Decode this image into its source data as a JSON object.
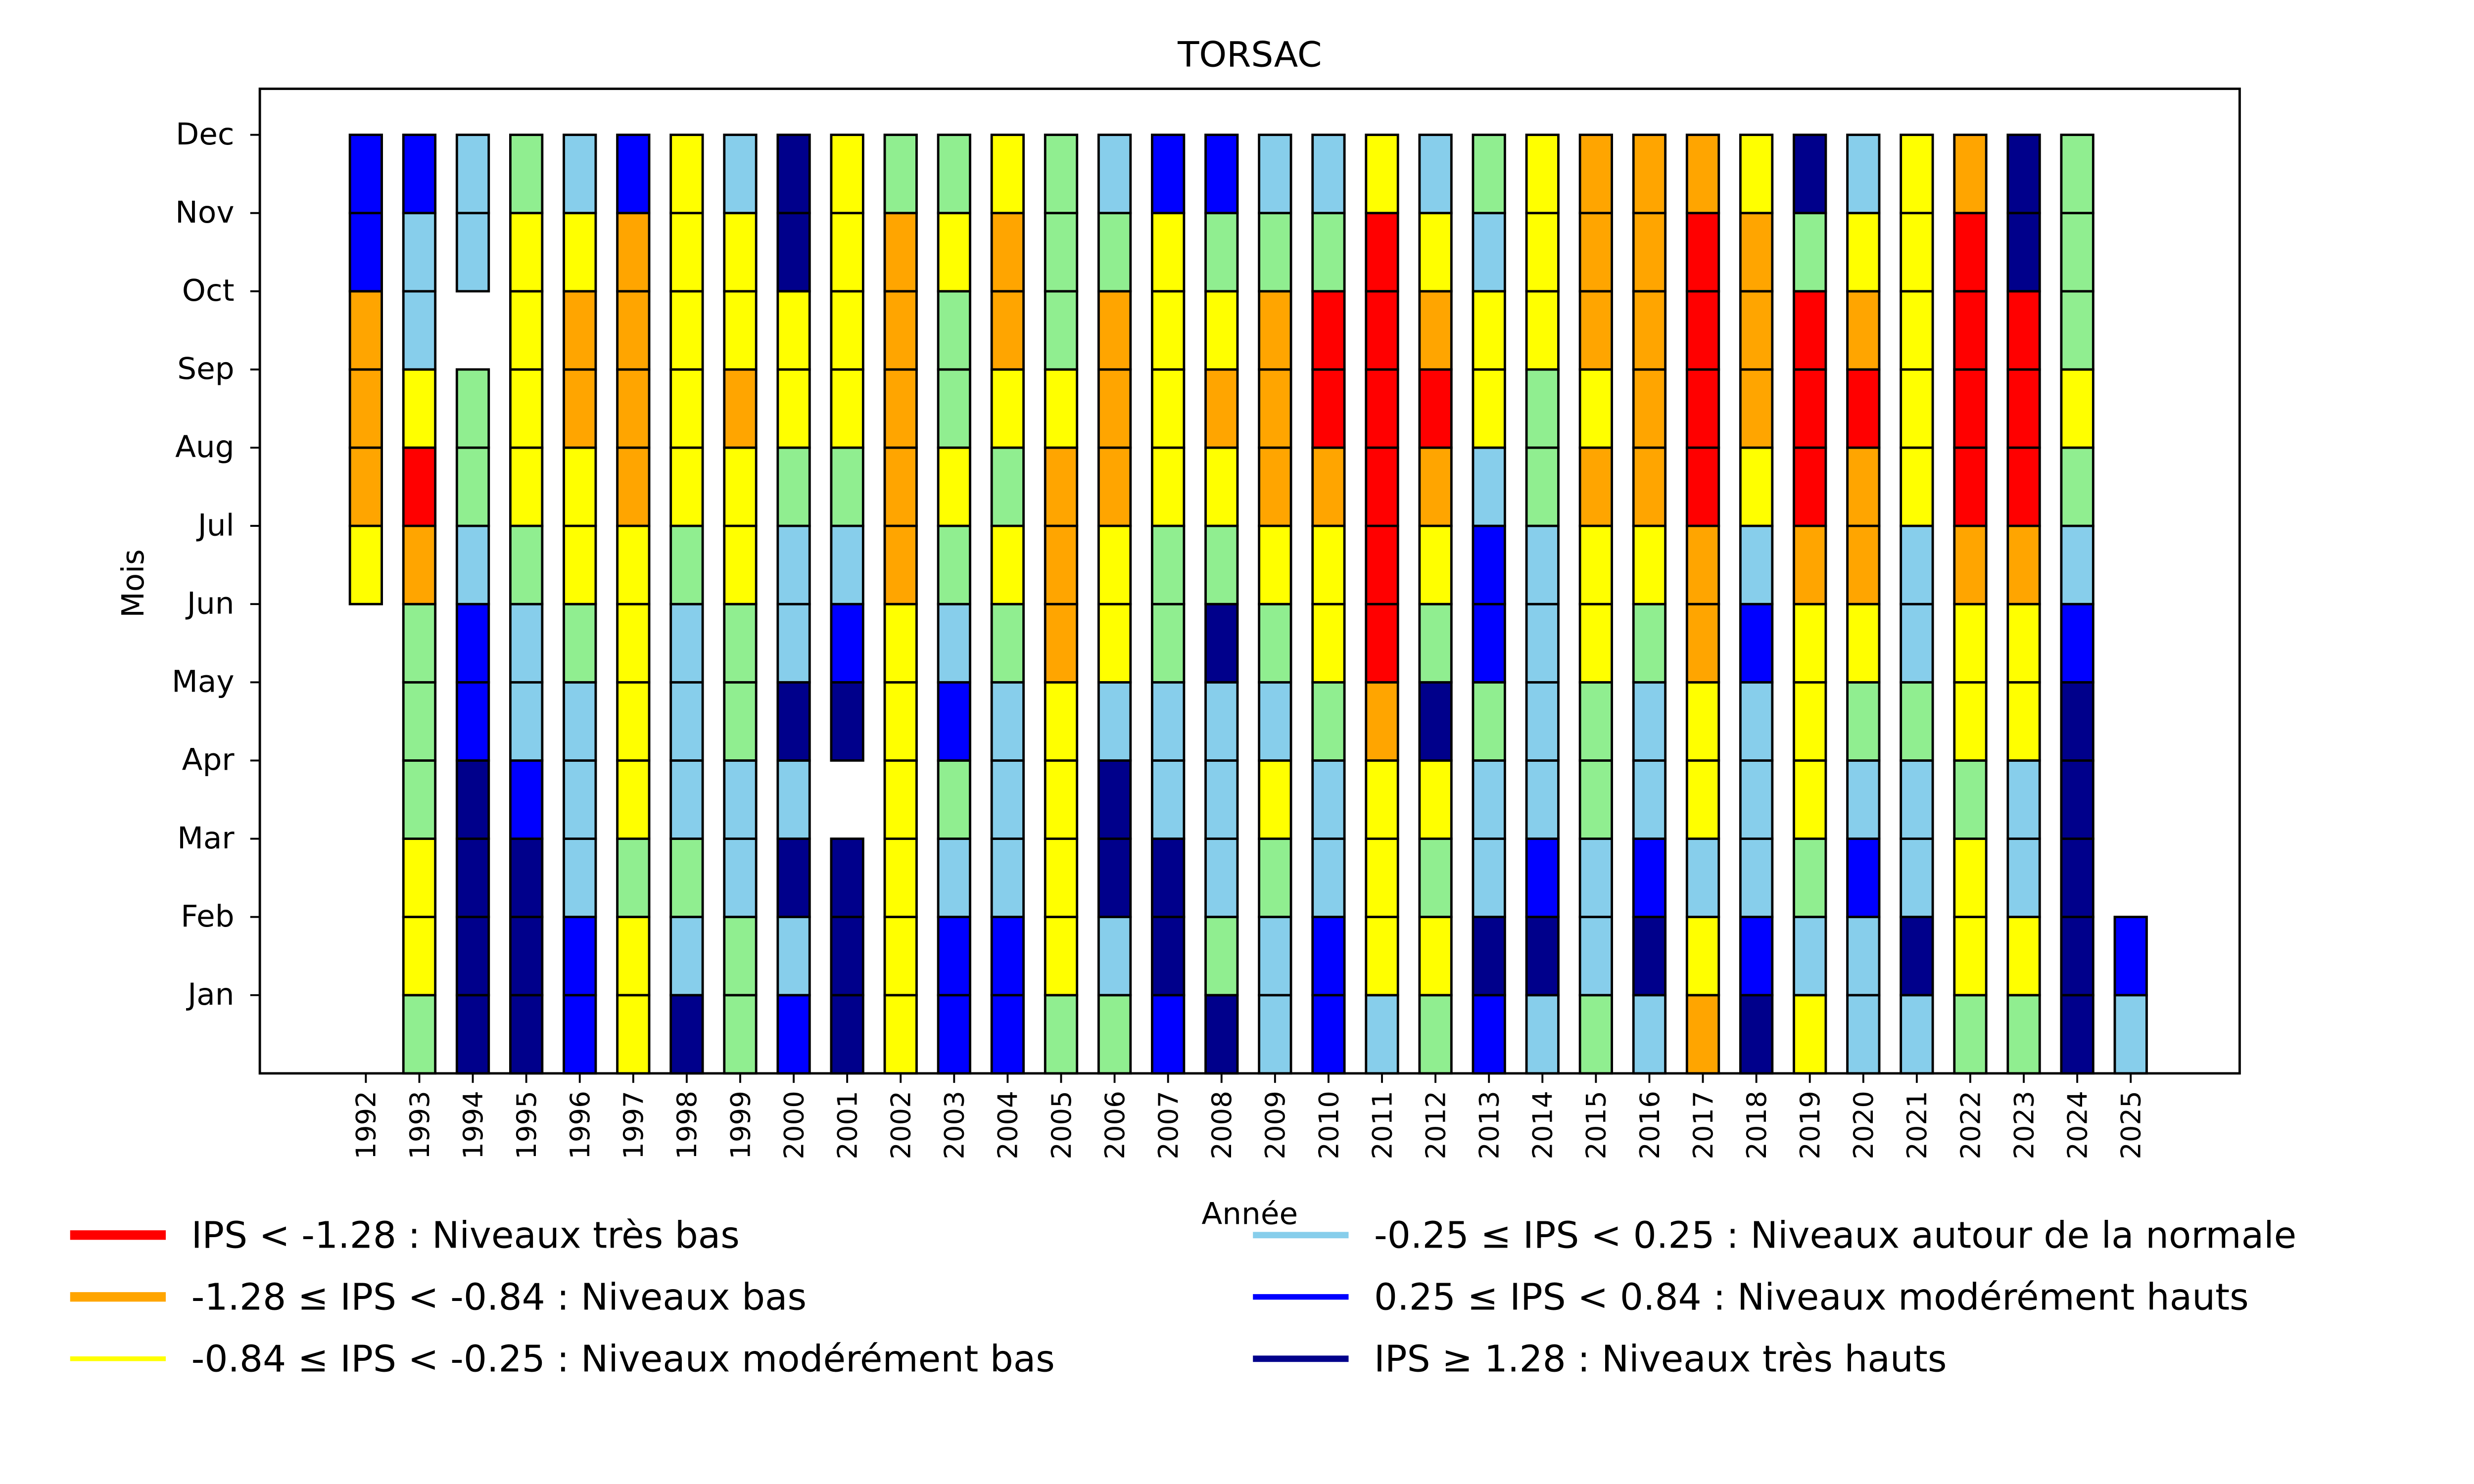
{
  "chart_data": {
    "type": "heatmap",
    "title": "TORSAC",
    "xlabel": "Année",
    "ylabel": "Mois",
    "months": [
      "Jan",
      "Feb",
      "Mar",
      "Apr",
      "May",
      "Jun",
      "Jul",
      "Aug",
      "Sep",
      "Oct",
      "Nov",
      "Dec"
    ],
    "years": [
      "1992",
      "1993",
      "1994",
      "1995",
      "1996",
      "1997",
      "1998",
      "1999",
      "2000",
      "2001",
      "2002",
      "2003",
      "2004",
      "2005",
      "2006",
      "2007",
      "2008",
      "2009",
      "2010",
      "2011",
      "2012",
      "2013",
      "2014",
      "2015",
      "2016",
      "2017",
      "2018",
      "2019",
      "2020",
      "2021",
      "2022",
      "2023",
      "2024",
      "2025"
    ],
    "colors": {
      "R": "#ff0000",
      "O": "#ffa500",
      "Y": "#ffff00",
      "G": "#90ee90",
      "L": "#87ceeb",
      "B": "#0000ff",
      "N": "#00008b"
    },
    "values_note": "Per year, 12 codes ordered Jan..Dec; '-' = no data",
    "values": {
      "1992": [
        "-",
        "-",
        "-",
        "-",
        "-",
        "-",
        "Y",
        "O",
        "O",
        "O",
        "B",
        "B"
      ],
      "1993": [
        "G",
        "Y",
        "Y",
        "G",
        "G",
        "G",
        "O",
        "R",
        "Y",
        "L",
        "L",
        "B"
      ],
      "1994": [
        "N",
        "N",
        "N",
        "N",
        "B",
        "B",
        "L",
        "G",
        "G",
        "-",
        "L",
        "L"
      ],
      "1995": [
        "N",
        "N",
        "N",
        "B",
        "L",
        "L",
        "G",
        "Y",
        "Y",
        "Y",
        "Y",
        "G"
      ],
      "1996": [
        "B",
        "B",
        "L",
        "L",
        "L",
        "G",
        "Y",
        "Y",
        "O",
        "O",
        "Y",
        "L"
      ],
      "1997": [
        "Y",
        "Y",
        "G",
        "Y",
        "Y",
        "Y",
        "Y",
        "O",
        "O",
        "O",
        "O",
        "B"
      ],
      "1998": [
        "N",
        "L",
        "G",
        "L",
        "L",
        "L",
        "G",
        "Y",
        "Y",
        "Y",
        "Y",
        "Y"
      ],
      "1999": [
        "G",
        "G",
        "L",
        "L",
        "G",
        "G",
        "Y",
        "Y",
        "O",
        "Y",
        "Y",
        "L"
      ],
      "2000": [
        "B",
        "L",
        "N",
        "L",
        "N",
        "L",
        "L",
        "G",
        "Y",
        "Y",
        "N",
        "N"
      ],
      "2001": [
        "N",
        "N",
        "N",
        "-",
        "N",
        "B",
        "L",
        "G",
        "Y",
        "Y",
        "Y",
        "Y"
      ],
      "2002": [
        "Y",
        "Y",
        "Y",
        "Y",
        "Y",
        "Y",
        "O",
        "O",
        "O",
        "O",
        "O",
        "G"
      ],
      "2003": [
        "B",
        "B",
        "L",
        "G",
        "B",
        "L",
        "G",
        "Y",
        "G",
        "G",
        "Y",
        "G"
      ],
      "2004": [
        "B",
        "B",
        "L",
        "L",
        "L",
        "G",
        "Y",
        "G",
        "Y",
        "O",
        "O",
        "Y"
      ],
      "2005": [
        "G",
        "Y",
        "Y",
        "Y",
        "Y",
        "O",
        "O",
        "O",
        "Y",
        "G",
        "G",
        "G"
      ],
      "2006": [
        "G",
        "L",
        "N",
        "N",
        "L",
        "Y",
        "Y",
        "O",
        "O",
        "O",
        "G",
        "L"
      ],
      "2007": [
        "B",
        "N",
        "N",
        "L",
        "L",
        "G",
        "G",
        "Y",
        "Y",
        "Y",
        "Y",
        "B"
      ],
      "2008": [
        "N",
        "G",
        "L",
        "L",
        "L",
        "N",
        "G",
        "Y",
        "O",
        "Y",
        "G",
        "B"
      ],
      "2009": [
        "L",
        "L",
        "G",
        "Y",
        "L",
        "G",
        "Y",
        "O",
        "O",
        "O",
        "G",
        "L"
      ],
      "2010": [
        "B",
        "B",
        "L",
        "L",
        "G",
        "Y",
        "Y",
        "O",
        "R",
        "R",
        "G",
        "L"
      ],
      "2011": [
        "L",
        "Y",
        "Y",
        "Y",
        "O",
        "R",
        "R",
        "R",
        "R",
        "R",
        "R",
        "Y"
      ],
      "2012": [
        "G",
        "Y",
        "G",
        "Y",
        "N",
        "G",
        "Y",
        "O",
        "R",
        "O",
        "Y",
        "L"
      ],
      "2013": [
        "B",
        "N",
        "L",
        "L",
        "G",
        "B",
        "B",
        "L",
        "Y",
        "Y",
        "L",
        "G"
      ],
      "2014": [
        "L",
        "N",
        "B",
        "L",
        "L",
        "L",
        "L",
        "G",
        "G",
        "Y",
        "Y",
        "Y"
      ],
      "2015": [
        "G",
        "L",
        "L",
        "G",
        "G",
        "Y",
        "Y",
        "O",
        "Y",
        "O",
        "O",
        "O"
      ],
      "2016": [
        "L",
        "N",
        "B",
        "L",
        "L",
        "G",
        "Y",
        "O",
        "O",
        "O",
        "O",
        "O"
      ],
      "2017": [
        "O",
        "Y",
        "L",
        "Y",
        "Y",
        "O",
        "O",
        "R",
        "R",
        "R",
        "R",
        "O"
      ],
      "2018": [
        "N",
        "B",
        "L",
        "L",
        "L",
        "B",
        "L",
        "Y",
        "O",
        "O",
        "O",
        "Y"
      ],
      "2019": [
        "Y",
        "L",
        "G",
        "Y",
        "Y",
        "Y",
        "O",
        "R",
        "R",
        "R",
        "G",
        "N"
      ],
      "2020": [
        "L",
        "L",
        "B",
        "L",
        "G",
        "Y",
        "O",
        "O",
        "R",
        "O",
        "Y",
        "L"
      ],
      "2021": [
        "L",
        "N",
        "L",
        "L",
        "G",
        "L",
        "L",
        "Y",
        "Y",
        "Y",
        "Y",
        "Y"
      ],
      "2022": [
        "G",
        "Y",
        "Y",
        "G",
        "Y",
        "Y",
        "O",
        "R",
        "R",
        "R",
        "R",
        "O"
      ],
      "2023": [
        "G",
        "Y",
        "L",
        "L",
        "Y",
        "Y",
        "O",
        "R",
        "R",
        "R",
        "N",
        "N"
      ],
      "2024": [
        "N",
        "N",
        "N",
        "N",
        "N",
        "B",
        "L",
        "G",
        "Y",
        "G",
        "G",
        "G"
      ],
      "2025": [
        "L",
        "B",
        "-",
        "-",
        "-",
        "-",
        "-",
        "-",
        "-",
        "-",
        "-",
        "-"
      ]
    },
    "legend": [
      {
        "code": "R",
        "color": "#ff0000",
        "label": "IPS < -1.28 : Niveaux très bas"
      },
      {
        "code": "O",
        "color": "#ffa500",
        "label": "-1.28 ≤ IPS < -0.84 : Niveaux bas"
      },
      {
        "code": "Y",
        "color": "#ffff00",
        "label": "-0.84 ≤ IPS < -0.25 : Niveaux modérément bas"
      },
      {
        "code": "L",
        "color": "#87ceeb",
        "label": "-0.25 ≤ IPS < 0.25 : Niveaux autour de la normale"
      },
      {
        "code": "B",
        "color": "#0000ff",
        "label": "0.25 ≤ IPS < 0.84 : Niveaux modérément hauts"
      },
      {
        "code": "N",
        "color": "#00008b",
        "label": "IPS ≥ 1.28 : Niveaux très hauts"
      }
    ],
    "legend_placement": "bottom",
    "grid": false
  }
}
